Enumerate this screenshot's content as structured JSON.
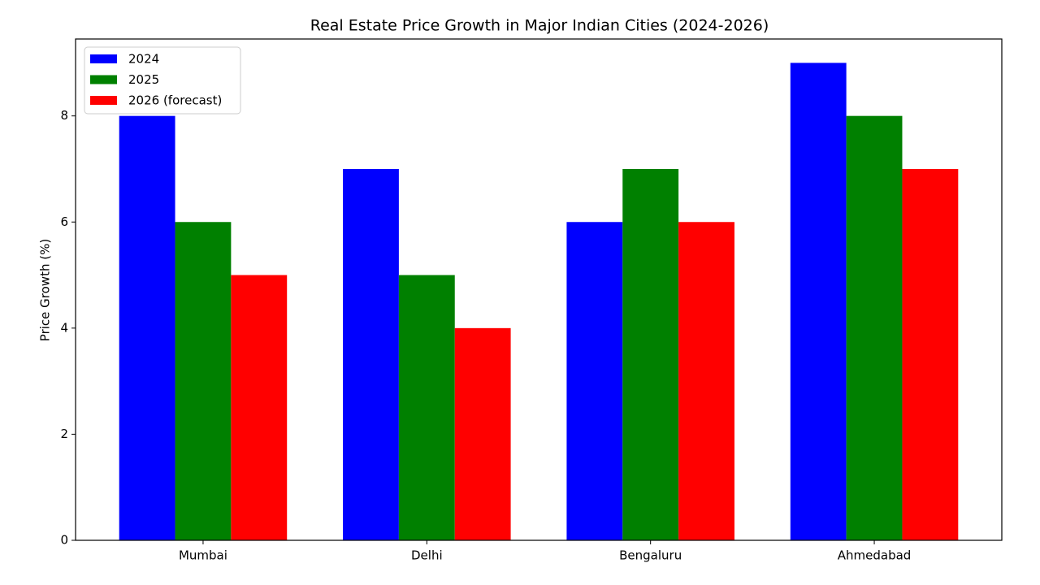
{
  "chart_data": {
    "type": "bar",
    "title": "Real Estate Price Growth in Major Indian Cities (2024-2026)",
    "y_label": "Price Growth (%)",
    "categories": [
      "Mumbai",
      "Delhi",
      "Bengaluru",
      "Ahmedabad"
    ],
    "series": [
      {
        "name": "2024",
        "color": "#0000ff",
        "values": [
          8,
          7,
          6,
          9
        ]
      },
      {
        "name": "2025",
        "color": "#008000",
        "values": [
          6,
          5,
          7,
          8
        ]
      },
      {
        "name": "2026 (forecast)",
        "color": "#ff0000",
        "values": [
          5,
          4,
          6,
          7
        ]
      }
    ],
    "ylim": [
      0,
      9.45
    ],
    "yticks": [
      0,
      2,
      4,
      6,
      8
    ],
    "grid": false,
    "legend": "upper-left"
  }
}
